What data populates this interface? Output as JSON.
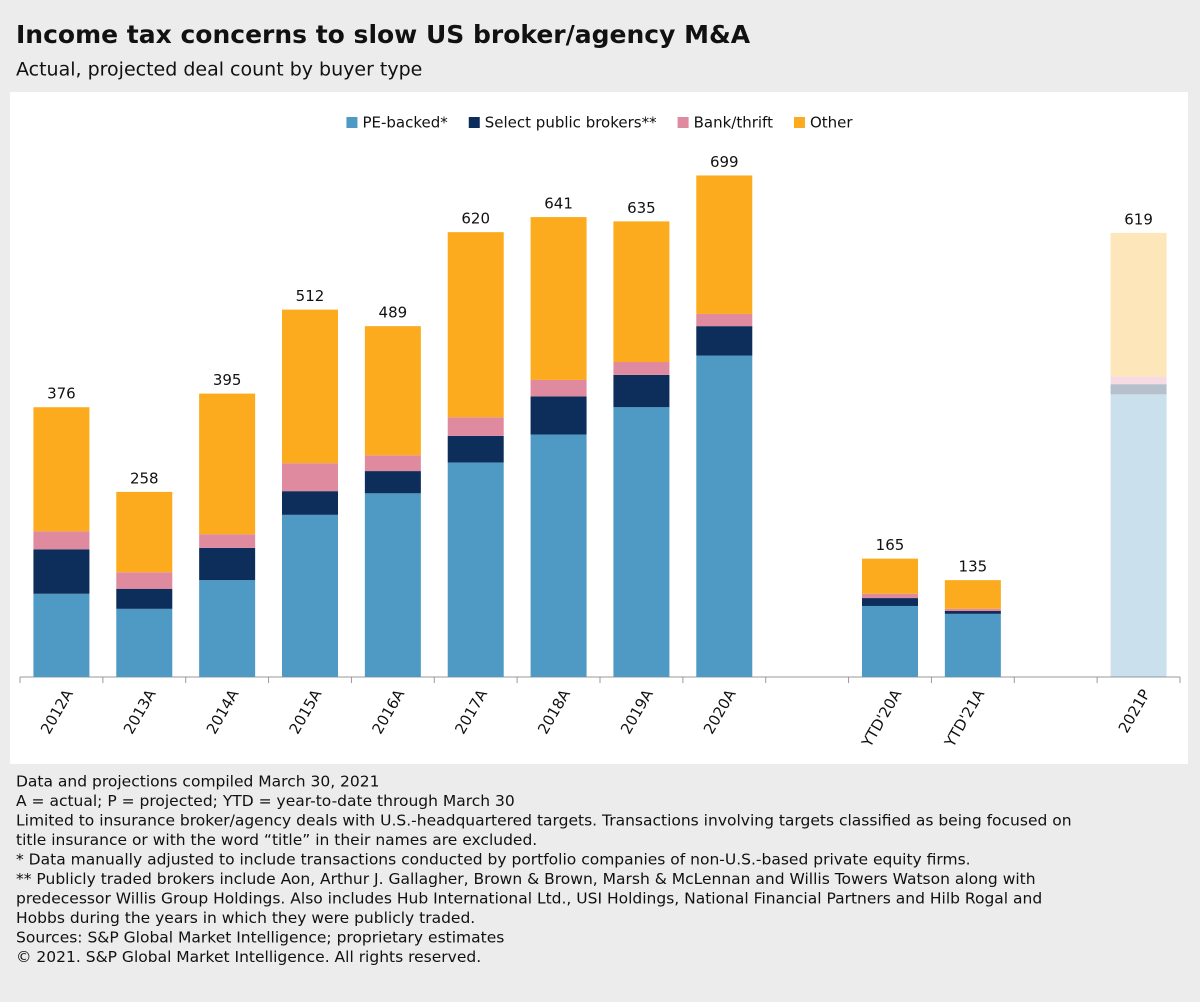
{
  "chart_data": {
    "type": "stacked_bar",
    "title": "Income tax concerns to slow US broker/agency M&A",
    "subtitle": "Actual, projected deal count by buyer type",
    "categories": [
      "2012A",
      "2013A",
      "2014A",
      "2015A",
      "2016A",
      "2017A",
      "2018A",
      "2019A",
      "2020A",
      null,
      "YTD'20A",
      "YTD'21A",
      null,
      "2021P"
    ],
    "series": [
      {
        "name": "PE-backed*",
        "color": "#4f9ac4",
        "values": [
          116,
          95,
          135,
          226,
          256,
          299,
          338,
          376,
          448,
          null,
          99,
          88,
          null,
          394
        ]
      },
      {
        "name": "Select public brokers**",
        "color": "#0d2d5a",
        "values": [
          62,
          28,
          45,
          33,
          31,
          37,
          53,
          45,
          41,
          null,
          11,
          4,
          null,
          14
        ]
      },
      {
        "name": "Bank/thrift",
        "color": "#e08aa0",
        "values": [
          25,
          23,
          19,
          39,
          22,
          26,
          23,
          18,
          17,
          null,
          6,
          3,
          null,
          11
        ]
      },
      {
        "name": "Other",
        "color": "#fbab1d",
        "values": [
          173,
          112,
          196,
          214,
          180,
          258,
          227,
          196,
          193,
          null,
          49,
          40,
          null,
          200
        ]
      }
    ],
    "totals": [
      376,
      258,
      395,
      512,
      489,
      620,
      641,
      635,
      699,
      null,
      165,
      135,
      null,
      619
    ],
    "ylim": [
      0,
      800
    ],
    "legend": "top",
    "footnotes": [
      "Data and projections compiled March 30, 2021",
      "A = actual; P = projected; YTD = year-to-date through March 30",
      "Limited to insurance broker/agency deals with U.S.-headquartered targets. Transactions involving targets classified as being focused on",
      "title insurance or with the word “title” in their names are excluded.",
      "* Data manually adjusted to include transactions conducted by portfolio companies of non-U.S.-based private equity firms.",
      "** Publicly traded brokers include Aon, Arthur J. Gallagher, Brown & Brown, Marsh & McLennan and Willis Towers Watson along with",
      "predecessor Willis Group Holdings. Also includes Hub International Ltd., USI Holdings, National Financial Partners and Hilb Rogal and",
      "Hobbs during the years in which they were publicly traded.",
      "Sources: S&P Global Market Intelligence; proprietary estimates",
      "© 2021. S&P Global Market Intelligence. All rights reserved."
    ]
  }
}
